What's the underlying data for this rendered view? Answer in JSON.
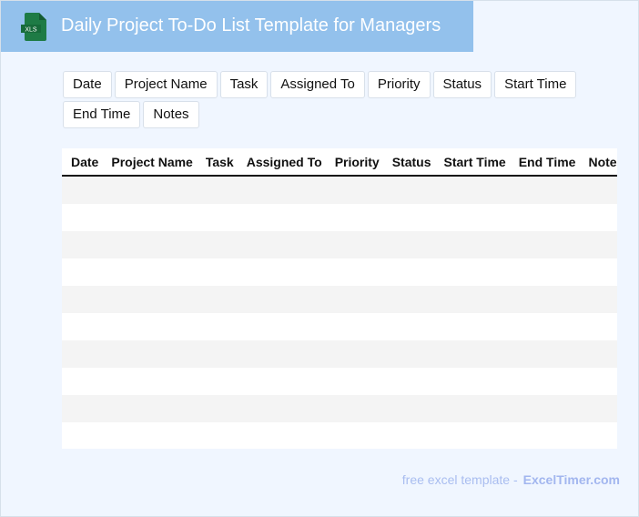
{
  "header": {
    "title": "Daily Project To-Do List Template for Managers",
    "icon": "xls-file-icon",
    "icon_label": "XLS"
  },
  "columns": [
    "Date",
    "Project Name",
    "Task",
    "Assigned To",
    "Priority",
    "Status",
    "Start Time",
    "End Time",
    "Notes"
  ],
  "table": {
    "header_cells": [
      "Date",
      "Project Name",
      "Task",
      "Assigned To",
      "Priority",
      "Status",
      "Start Time",
      "End Time",
      "Notes"
    ],
    "empty_rows": 10
  },
  "footer": {
    "text": "free excel template -",
    "brand": "ExcelTimer.com"
  },
  "colors": {
    "header_bg": "#93c1ec",
    "page_bg": "#f0f6ff",
    "icon_green": "#1e7b45",
    "footer_text": "#a9bdf0"
  }
}
